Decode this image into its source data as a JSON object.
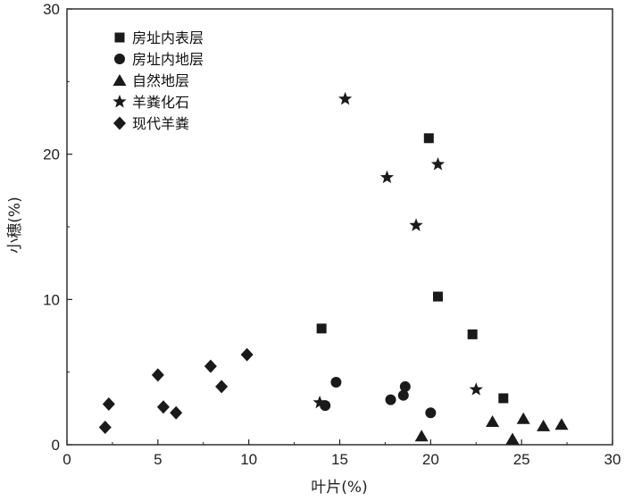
{
  "chart_data": {
    "type": "scatter",
    "title": "",
    "xlabel": "叶片(%)",
    "ylabel": "小穗(%)",
    "xlim": [
      0,
      30
    ],
    "ylim": [
      0,
      30
    ],
    "xticks": [
      0,
      5,
      10,
      15,
      20,
      25,
      30
    ],
    "yticks": [
      0,
      10,
      20,
      30
    ],
    "legend_position": "top-left",
    "grid": false,
    "series": [
      {
        "name": "房址内表层",
        "marker": "square",
        "color": "#1a1a1a",
        "points": [
          [
            14.0,
            8.0
          ],
          [
            19.9,
            21.1
          ],
          [
            20.4,
            10.2
          ],
          [
            22.3,
            7.6
          ],
          [
            24.0,
            3.2
          ]
        ]
      },
      {
        "name": "房址内地层",
        "marker": "circle",
        "color": "#1a1a1a",
        "points": [
          [
            14.2,
            2.7
          ],
          [
            14.8,
            4.3
          ],
          [
            17.8,
            3.1
          ],
          [
            18.5,
            3.4
          ],
          [
            18.6,
            4.0
          ],
          [
            20.0,
            2.2
          ]
        ]
      },
      {
        "name": "自然地层",
        "marker": "triangle",
        "color": "#1a1a1a",
        "points": [
          [
            19.5,
            0.6
          ],
          [
            23.4,
            1.6
          ],
          [
            24.5,
            0.4
          ],
          [
            25.1,
            1.8
          ],
          [
            26.2,
            1.3
          ],
          [
            27.2,
            1.4
          ]
        ]
      },
      {
        "name": "羊粪化石",
        "marker": "star",
        "color": "#1a1a1a",
        "points": [
          [
            13.9,
            2.9
          ],
          [
            15.3,
            23.8
          ],
          [
            17.6,
            18.4
          ],
          [
            19.2,
            15.1
          ],
          [
            20.4,
            19.3
          ],
          [
            22.5,
            3.8
          ]
        ]
      },
      {
        "name": "现代羊粪",
        "marker": "diamond",
        "color": "#1a1a1a",
        "points": [
          [
            2.1,
            1.2
          ],
          [
            2.3,
            2.8
          ],
          [
            5.0,
            4.8
          ],
          [
            5.3,
            2.6
          ],
          [
            6.0,
            2.2
          ],
          [
            7.9,
            5.4
          ],
          [
            8.5,
            4.0
          ],
          [
            9.9,
            6.2
          ]
        ]
      }
    ]
  }
}
